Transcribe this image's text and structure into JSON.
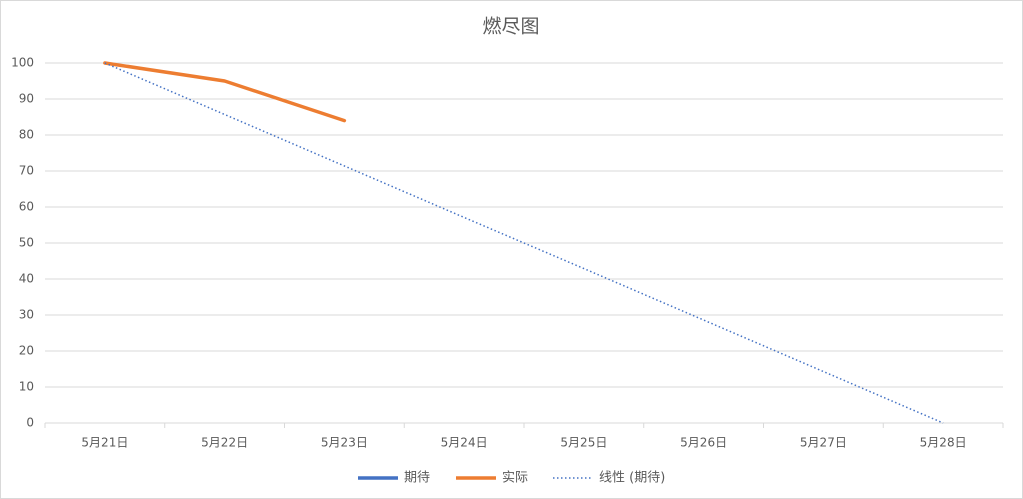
{
  "chart_data": {
    "type": "line",
    "title": "燃尽图",
    "categories": [
      "5月21日",
      "5月22日",
      "5月23日",
      "5月24日",
      "5月25日",
      "5月26日",
      "5月27日",
      "5月28日"
    ],
    "series": [
      {
        "name": "期待",
        "color": "#4472c4",
        "values": [
          null,
          null,
          null,
          null,
          null,
          null,
          null,
          null
        ]
      },
      {
        "name": "实际",
        "color": "#ed7d31",
        "values": [
          100,
          95,
          84,
          null,
          null,
          null,
          null,
          null
        ]
      },
      {
        "name": "线性 (期待)",
        "color": "#4472c4",
        "dash": "dotted",
        "values": [
          100,
          85.7,
          71.4,
          57.1,
          42.9,
          28.6,
          14.3,
          0
        ]
      }
    ],
    "ylim": [
      0,
      100
    ],
    "yticks": [
      0,
      10,
      20,
      30,
      40,
      50,
      60,
      70,
      80,
      90,
      100
    ],
    "grid": true,
    "legend": "bottom"
  }
}
